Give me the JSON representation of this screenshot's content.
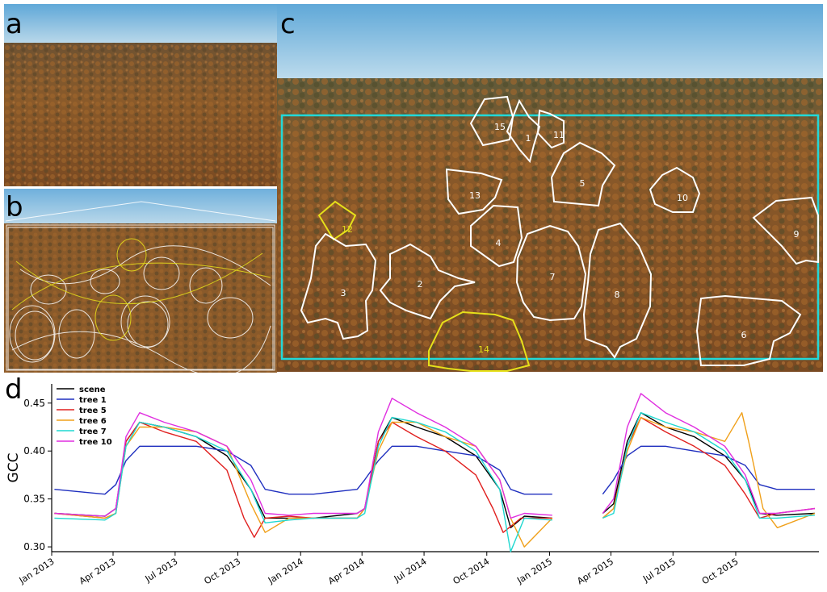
{
  "panels": {
    "a": {
      "label": "a"
    },
    "b": {
      "label": "b"
    },
    "c": {
      "label": "c"
    },
    "d": {
      "label": "d"
    }
  },
  "rois": [
    {
      "id": "15",
      "color": "white"
    },
    {
      "id": "1",
      "color": "white"
    },
    {
      "id": "11",
      "color": "white"
    },
    {
      "id": "5",
      "color": "white"
    },
    {
      "id": "13",
      "color": "white"
    },
    {
      "id": "10",
      "color": "white"
    },
    {
      "id": "12",
      "color": "yellow"
    },
    {
      "id": "4",
      "color": "white"
    },
    {
      "id": "9",
      "color": "white"
    },
    {
      "id": "3",
      "color": "white"
    },
    {
      "id": "2",
      "color": "white"
    },
    {
      "id": "7",
      "color": "white"
    },
    {
      "id": "8",
      "color": "white"
    },
    {
      "id": "14",
      "color": "yellow"
    },
    {
      "id": "6",
      "color": "white"
    }
  ],
  "colors": {
    "sky_top": "#5fa8d8",
    "sky_bottom": "#bcd9ea",
    "canopy": "#8a5a2a",
    "scene_box": "#22d8d8",
    "roi_yellow": "#e6e01a",
    "roi_white": "#ffffff"
  },
  "chart_data": {
    "type": "line",
    "ylabel": "GCC",
    "ylim": [
      0.295,
      0.47
    ],
    "yticks": [
      0.3,
      0.35,
      0.4,
      0.45
    ],
    "ytick_labels": [
      "0.30",
      "0.35",
      "0.40",
      "0.45"
    ],
    "xlim": [
      "2013-01-01",
      "2016-01-31"
    ],
    "x_ticks": [
      {
        "date": "2013-01-01",
        "label": "Jan 2013"
      },
      {
        "date": "2013-04-01",
        "label": "Apr 2013"
      },
      {
        "date": "2013-07-01",
        "label": "Jul 2013"
      },
      {
        "date": "2013-10-01",
        "label": "Oct 2013"
      },
      {
        "date": "2014-01-01",
        "label": "Jan 2014"
      },
      {
        "date": "2014-04-01",
        "label": "Apr 2014"
      },
      {
        "date": "2014-07-01",
        "label": "Jul 2014"
      },
      {
        "date": "2014-10-01",
        "label": "Oct 2014"
      },
      {
        "date": "2015-01-01",
        "label": "Jan 2015"
      },
      {
        "date": "2015-04-01",
        "label": "Apr 2015"
      },
      {
        "date": "2015-07-01",
        "label": "Jul 2015"
      },
      {
        "date": "2015-10-01",
        "label": "Oct 2015"
      }
    ],
    "legend_position": "top-left",
    "series": [
      {
        "name": "scene",
        "color": "#000000",
        "x": [
          "2013-01-05",
          "2013-03-20",
          "2013-04-05",
          "2013-04-20",
          "2013-05-10",
          "2013-06-15",
          "2013-08-01",
          "2013-09-15",
          "2013-10-20",
          "2013-11-10",
          "2013-12-15",
          "2014-01-20",
          "2014-03-25",
          "2014-04-05",
          "2014-04-25",
          "2014-05-15",
          "2014-06-20",
          "2014-08-01",
          "2014-09-15",
          "2014-10-20",
          "2014-11-05",
          "2014-11-25",
          "2015-01-05",
          "2015-02-25",
          "2015-03-20",
          "2015-04-05",
          "2015-04-25",
          "2015-05-15",
          "2015-06-20",
          "2015-08-01",
          "2015-09-15",
          "2015-10-15",
          "2015-11-05",
          "2015-11-30",
          "2016-01-25"
        ],
        "y": [
          0.335,
          0.332,
          0.34,
          0.41,
          0.43,
          0.425,
          0.415,
          0.395,
          0.36,
          0.33,
          0.33,
          0.33,
          0.335,
          0.34,
          0.41,
          0.435,
          0.425,
          0.415,
          0.395,
          0.36,
          0.32,
          0.332,
          0.33,
          null,
          0.335,
          0.345,
          0.41,
          0.44,
          0.425,
          0.415,
          0.395,
          0.37,
          0.335,
          0.333,
          0.335
        ]
      },
      {
        "name": "tree 1",
        "color": "#1f2fbf",
        "x": [
          "2013-01-05",
          "2013-03-20",
          "2013-04-05",
          "2013-04-20",
          "2013-05-10",
          "2013-06-15",
          "2013-08-01",
          "2013-09-15",
          "2013-10-20",
          "2013-11-10",
          "2013-12-15",
          "2014-01-20",
          "2014-03-25",
          "2014-04-05",
          "2014-04-25",
          "2014-05-15",
          "2014-06-20",
          "2014-08-01",
          "2014-09-15",
          "2014-10-20",
          "2014-11-05",
          "2014-11-25",
          "2015-01-05",
          "2015-02-25",
          "2015-03-20",
          "2015-04-05",
          "2015-04-25",
          "2015-05-15",
          "2015-06-20",
          "2015-08-01",
          "2015-09-15",
          "2015-10-15",
          "2015-11-05",
          "2015-11-30",
          "2016-01-25"
        ],
        "y": [
          0.36,
          0.355,
          0.365,
          0.39,
          0.405,
          0.405,
          0.405,
          0.4,
          0.385,
          0.36,
          0.355,
          0.355,
          0.36,
          0.37,
          0.39,
          0.405,
          0.405,
          0.4,
          0.395,
          0.38,
          0.36,
          0.355,
          0.355,
          null,
          0.355,
          0.37,
          0.395,
          0.405,
          0.405,
          0.4,
          0.395,
          0.385,
          0.365,
          0.36,
          0.36
        ]
      },
      {
        "name": "tree 5",
        "color": "#e0201f",
        "x": [
          "2013-01-05",
          "2013-03-20",
          "2013-04-05",
          "2013-04-20",
          "2013-05-10",
          "2013-06-15",
          "2013-08-01",
          "2013-09-15",
          "2013-10-10",
          "2013-10-25",
          "2013-11-10",
          "2013-12-15",
          "2014-01-20",
          "2014-03-25",
          "2014-04-05",
          "2014-04-25",
          "2014-05-15",
          "2014-06-20",
          "2014-08-01",
          "2014-09-15",
          "2014-10-10",
          "2014-10-25",
          "2014-11-20",
          "2015-01-05",
          "2015-02-25",
          "2015-03-20",
          "2015-04-05",
          "2015-04-25",
          "2015-05-15",
          "2015-06-20",
          "2015-08-01",
          "2015-09-15",
          "2015-10-15",
          "2015-11-05",
          "2015-11-30",
          "2016-01-25"
        ],
        "y": [
          0.335,
          0.33,
          0.335,
          0.41,
          0.43,
          0.42,
          0.41,
          0.38,
          0.33,
          0.31,
          0.33,
          0.332,
          0.33,
          0.33,
          0.34,
          0.41,
          0.43,
          0.415,
          0.4,
          0.375,
          0.34,
          0.315,
          0.33,
          0.33,
          null,
          0.33,
          0.34,
          0.405,
          0.435,
          0.42,
          0.405,
          0.385,
          0.355,
          0.33,
          0.335,
          0.34
        ]
      },
      {
        "name": "tree 6",
        "color": "#f0a01a",
        "x": [
          "2013-01-05",
          "2013-03-20",
          "2013-04-05",
          "2013-04-20",
          "2013-05-10",
          "2013-06-15",
          "2013-08-01",
          "2013-09-15",
          "2013-10-20",
          "2013-11-10",
          "2013-12-15",
          "2014-01-20",
          "2014-03-25",
          "2014-04-05",
          "2014-04-25",
          "2014-05-15",
          "2014-06-20",
          "2014-08-01",
          "2014-09-15",
          "2014-10-20",
          "2014-11-05",
          "2014-11-25",
          "2015-01-05",
          "2015-02-25",
          "2015-03-20",
          "2015-04-05",
          "2015-04-25",
          "2015-05-15",
          "2015-06-20",
          "2015-08-01",
          "2015-09-15",
          "2015-10-10",
          "2015-10-20",
          "2015-11-10",
          "2015-12-01",
          "2016-01-25"
        ],
        "y": [
          0.335,
          0.33,
          0.335,
          0.405,
          0.425,
          0.425,
          0.42,
          0.405,
          0.345,
          0.315,
          0.33,
          0.33,
          0.33,
          0.34,
          0.4,
          0.43,
          0.43,
          0.415,
          0.405,
          0.37,
          0.33,
          0.3,
          0.33,
          null,
          0.33,
          0.34,
          0.4,
          0.435,
          0.425,
          0.42,
          0.41,
          0.44,
          0.41,
          0.34,
          0.32,
          0.335
        ]
      },
      {
        "name": "tree 7",
        "color": "#1fd8d0",
        "x": [
          "2013-01-05",
          "2013-03-20",
          "2013-04-05",
          "2013-04-20",
          "2013-05-10",
          "2013-06-15",
          "2013-08-01",
          "2013-09-15",
          "2013-10-20",
          "2013-11-10",
          "2013-12-15",
          "2014-01-20",
          "2014-03-25",
          "2014-04-05",
          "2014-04-25",
          "2014-05-15",
          "2014-06-20",
          "2014-08-01",
          "2014-09-15",
          "2014-10-20",
          "2014-11-05",
          "2014-11-25",
          "2015-01-05",
          "2015-02-25",
          "2015-03-20",
          "2015-04-05",
          "2015-04-25",
          "2015-05-15",
          "2015-06-20",
          "2015-08-01",
          "2015-09-15",
          "2015-10-15",
          "2015-11-05",
          "2015-11-30",
          "2016-01-25"
        ],
        "y": [
          0.33,
          0.328,
          0.335,
          0.405,
          0.43,
          0.425,
          0.415,
          0.4,
          0.36,
          0.325,
          0.328,
          0.33,
          0.33,
          0.335,
          0.405,
          0.435,
          0.43,
          0.42,
          0.4,
          0.36,
          0.295,
          0.33,
          0.328,
          null,
          0.33,
          0.335,
          0.405,
          0.44,
          0.43,
          0.42,
          0.4,
          0.37,
          0.33,
          0.33,
          0.333
        ]
      },
      {
        "name": "tree 10",
        "color": "#e02fe0",
        "x": [
          "2013-01-05",
          "2013-03-20",
          "2013-04-05",
          "2013-04-20",
          "2013-05-10",
          "2013-06-15",
          "2013-08-01",
          "2013-09-15",
          "2013-10-20",
          "2013-11-10",
          "2013-12-15",
          "2014-01-20",
          "2014-03-25",
          "2014-04-05",
          "2014-04-25",
          "2014-05-15",
          "2014-06-20",
          "2014-08-01",
          "2014-09-15",
          "2014-10-20",
          "2014-11-05",
          "2014-11-25",
          "2015-01-05",
          "2015-02-25",
          "2015-03-20",
          "2015-04-05",
          "2015-04-25",
          "2015-05-15",
          "2015-06-20",
          "2015-08-01",
          "2015-09-15",
          "2015-10-15",
          "2015-11-05",
          "2015-11-30",
          "2016-01-25"
        ],
        "y": [
          0.335,
          0.332,
          0.34,
          0.415,
          0.44,
          0.43,
          0.42,
          0.405,
          0.37,
          0.335,
          0.333,
          0.335,
          0.335,
          0.34,
          0.42,
          0.455,
          0.44,
          0.425,
          0.405,
          0.37,
          0.33,
          0.335,
          0.333,
          null,
          0.335,
          0.35,
          0.425,
          0.46,
          0.44,
          0.425,
          0.405,
          0.375,
          0.335,
          0.335,
          0.34
        ]
      }
    ]
  }
}
